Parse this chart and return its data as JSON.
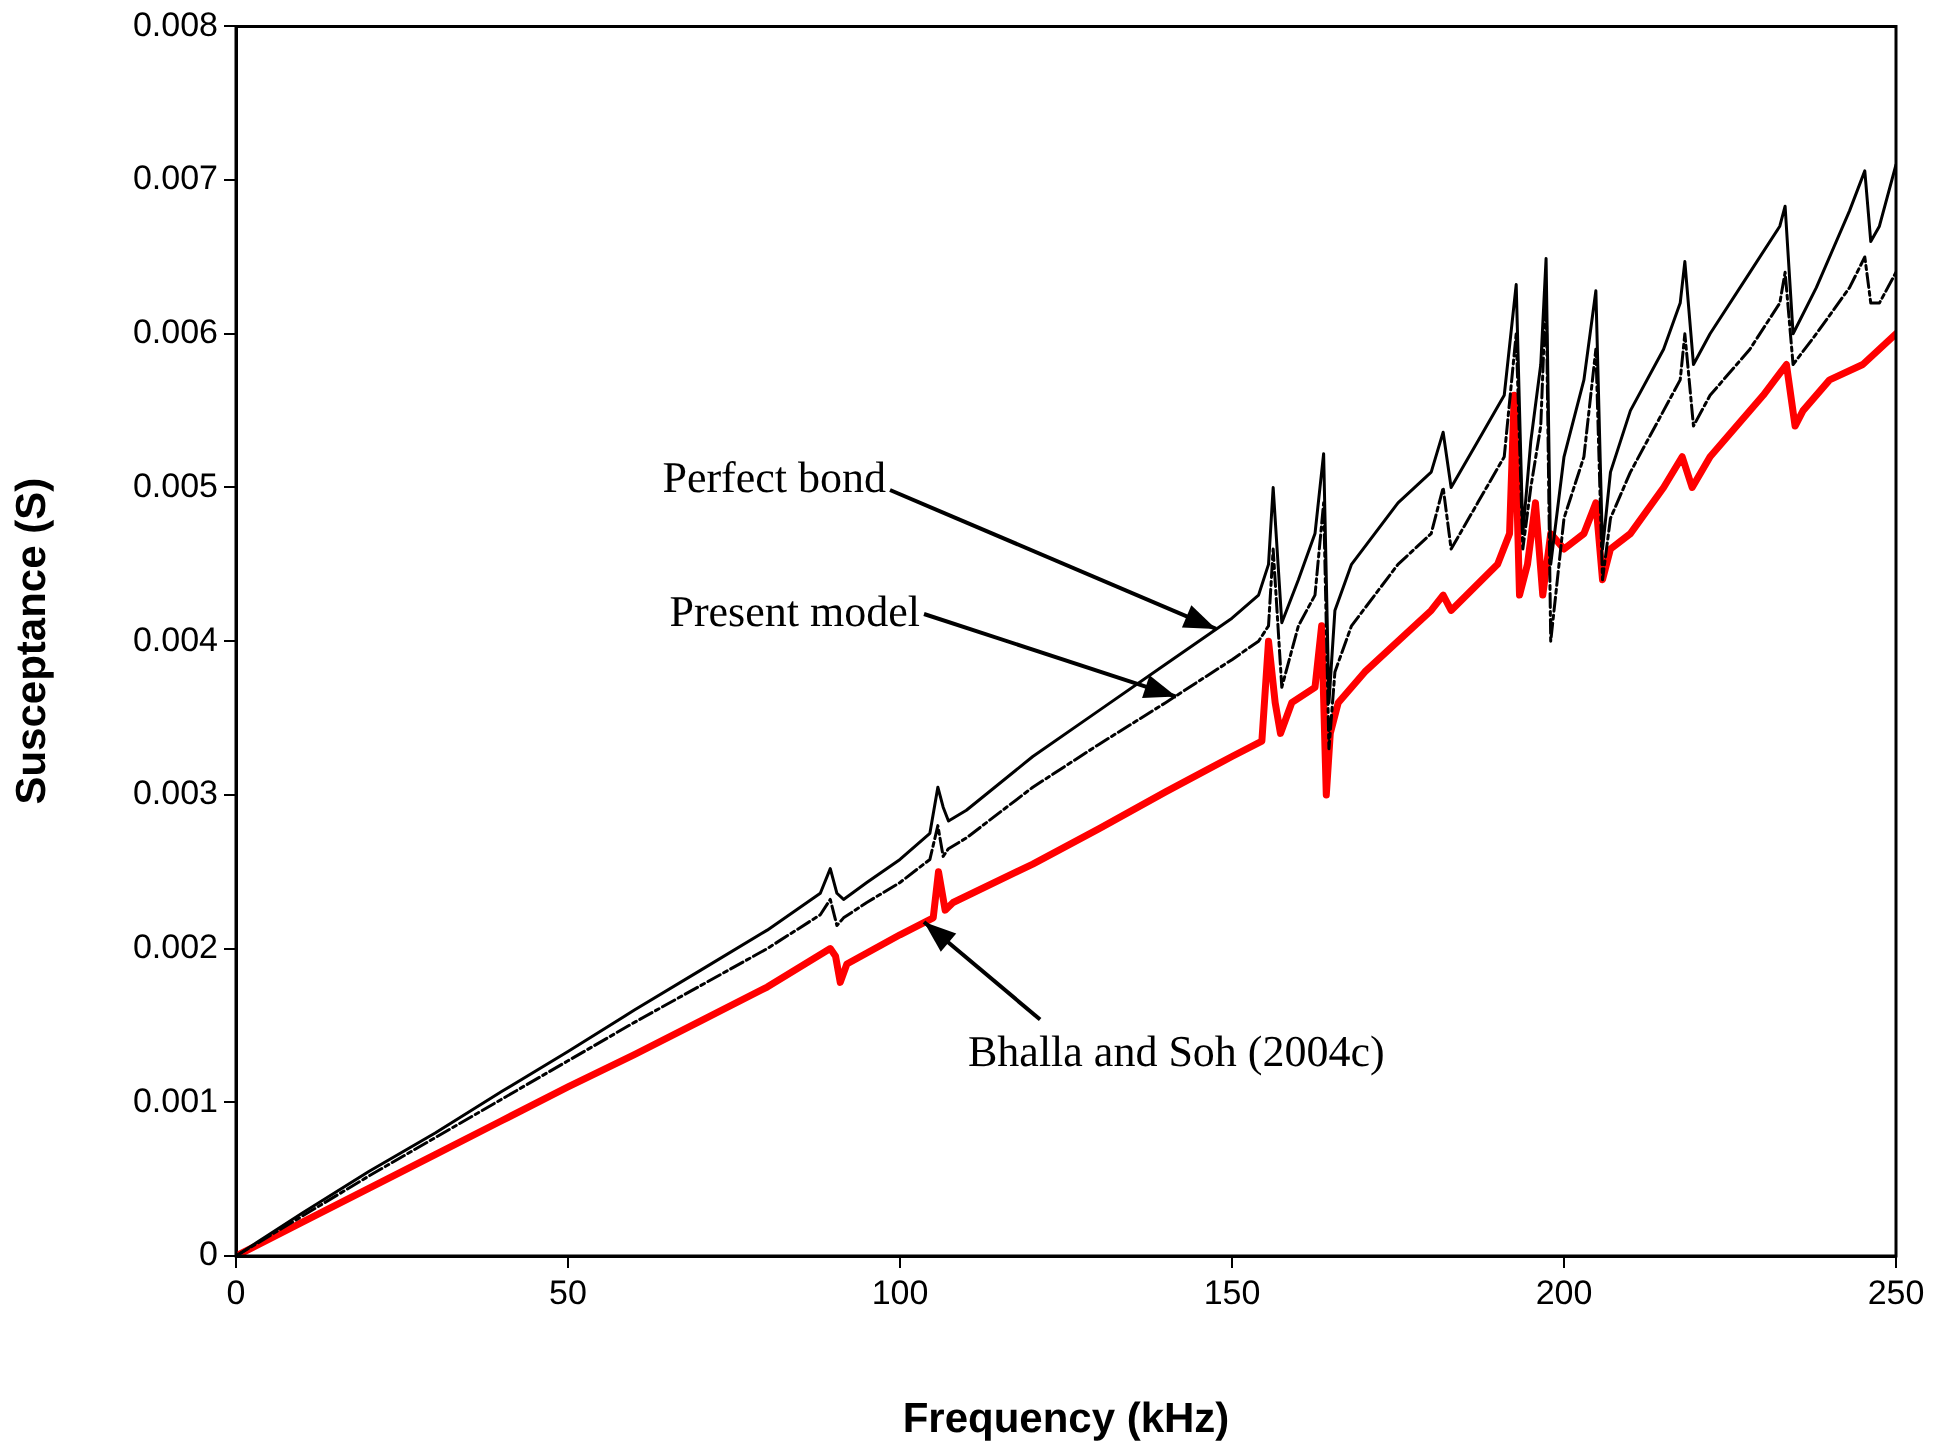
{
  "chart_data": {
    "type": "line",
    "xlabel": "Frequency (kHz)",
    "ylabel": "Susceptance (S)",
    "x": [
      0,
      10,
      20,
      30,
      40,
      50,
      60,
      70,
      80,
      88,
      89.5,
      90.5,
      91.5,
      95,
      100,
      104.5,
      105.7,
      106.5,
      107.3,
      110,
      120,
      130,
      140,
      150,
      154,
      155.5,
      156.2,
      157.5,
      160,
      162.5,
      163.8,
      164.6,
      165.5,
      168,
      175,
      180,
      181.8,
      183,
      187,
      191,
      192.8,
      193.8,
      195,
      196.5,
      197.3,
      198,
      200,
      203,
      204.8,
      205.8,
      207,
      210,
      215,
      217.5,
      218.2,
      219.5,
      222,
      228,
      232.5,
      233.3,
      234.5,
      238,
      243,
      245.3,
      246.2,
      247.5,
      250
    ],
    "series": [
      {
        "color": "#000000",
        "line_style": "solid",
        "values": [
          0,
          0.00028,
          0.00055,
          0.0008,
          0.00107,
          0.00133,
          0.0016,
          0.00186,
          0.00212,
          0.00236,
          0.00252,
          0.00236,
          0.00232,
          0.00243,
          0.00258,
          0.00275,
          0.00305,
          0.00292,
          0.00283,
          0.0029,
          0.00325,
          0.00355,
          0.00385,
          0.00415,
          0.0043,
          0.0045,
          0.005,
          0.00412,
          0.0044,
          0.0047,
          0.00522,
          0.0036,
          0.0042,
          0.0045,
          0.0049,
          0.0051,
          0.00536,
          0.005,
          0.0053,
          0.0056,
          0.00632,
          0.0047,
          0.0053,
          0.0058,
          0.00649,
          0.0045,
          0.0052,
          0.0057,
          0.00628,
          0.0046,
          0.0051,
          0.0055,
          0.0059,
          0.0062,
          0.00647,
          0.0058,
          0.006,
          0.0064,
          0.0067,
          0.00683,
          0.006,
          0.0063,
          0.0068,
          0.00706,
          0.0066,
          0.0067,
          0.0071
        ]
      },
      {
        "color": "#000000",
        "line_style": "dashed",
        "values": [
          0,
          0.00026,
          0.00052,
          0.00077,
          0.00102,
          0.00127,
          0.00152,
          0.00176,
          0.002,
          0.00222,
          0.00232,
          0.00215,
          0.0022,
          0.0023,
          0.00243,
          0.00258,
          0.0028,
          0.0026,
          0.00265,
          0.00272,
          0.00305,
          0.00333,
          0.0036,
          0.00388,
          0.004,
          0.0041,
          0.0046,
          0.0037,
          0.0041,
          0.0043,
          0.0049,
          0.0033,
          0.0038,
          0.0041,
          0.0045,
          0.0047,
          0.005,
          0.0046,
          0.0049,
          0.0052,
          0.006,
          0.0046,
          0.005,
          0.0054,
          0.0063,
          0.004,
          0.0048,
          0.0052,
          0.0059,
          0.0044,
          0.0048,
          0.0051,
          0.0055,
          0.0057,
          0.006,
          0.0054,
          0.0056,
          0.0059,
          0.0062,
          0.0064,
          0.0058,
          0.006,
          0.0063,
          0.0065,
          0.0062,
          0.0062,
          0.0064
        ]
      },
      {
        "color": "#ff0000",
        "line_style": "solid",
        "x": [
          0,
          10,
          20,
          30,
          40,
          50,
          60,
          70,
          80,
          89.5,
          90.3,
          91,
          92,
          100,
          105,
          105.8,
          106.8,
          108,
          120,
          130,
          140,
          150,
          154.5,
          155.5,
          156.5,
          157.3,
          159,
          162.5,
          163.5,
          164.2,
          164.8,
          166,
          170,
          180,
          181.8,
          183,
          190,
          191.8,
          192.5,
          193.3,
          194.5,
          195.7,
          196.8,
          198,
          200,
          203,
          204.8,
          205.8,
          207,
          210,
          215,
          217.8,
          219.3,
          222,
          230,
          233.5,
          234.8,
          236,
          240,
          245,
          250
        ],
        "values": [
          0,
          0.00022,
          0.00044,
          0.00066,
          0.00088,
          0.0011,
          0.00131,
          0.00153,
          0.00175,
          0.002,
          0.00195,
          0.00178,
          0.0019,
          0.00209,
          0.0022,
          0.0025,
          0.00225,
          0.0023,
          0.00255,
          0.00278,
          0.00302,
          0.00325,
          0.00335,
          0.004,
          0.0036,
          0.0034,
          0.0036,
          0.0037,
          0.0041,
          0.003,
          0.0034,
          0.0036,
          0.0038,
          0.0042,
          0.0043,
          0.0042,
          0.0045,
          0.0047,
          0.0056,
          0.0043,
          0.0045,
          0.0049,
          0.0043,
          0.0047,
          0.0046,
          0.0047,
          0.0049,
          0.0044,
          0.0046,
          0.0047,
          0.005,
          0.0052,
          0.005,
          0.0052,
          0.0056,
          0.0058,
          0.0054,
          0.0055,
          0.0057,
          0.0058,
          0.006
        ]
      }
    ],
    "xlim": [
      0,
      250
    ],
    "xticks": [
      0,
      50,
      100,
      150,
      200,
      250
    ],
    "ylim": [
      0,
      0.008
    ],
    "yticks": [
      0,
      0.001,
      0.002,
      0.003,
      0.004,
      0.005,
      0.006,
      0.007,
      0.008
    ],
    "grid": false,
    "legend": false,
    "marker": "none",
    "annotations": [
      {
        "text": "Perfect bond",
        "x": 147.6,
        "y": 0.00408
      },
      {
        "text": "Present model",
        "x": 141.6,
        "y": 0.00364
      },
      {
        "text": "Bhalla and Soh (2004c)",
        "x": 103.6,
        "y": 0.00217
      }
    ]
  }
}
